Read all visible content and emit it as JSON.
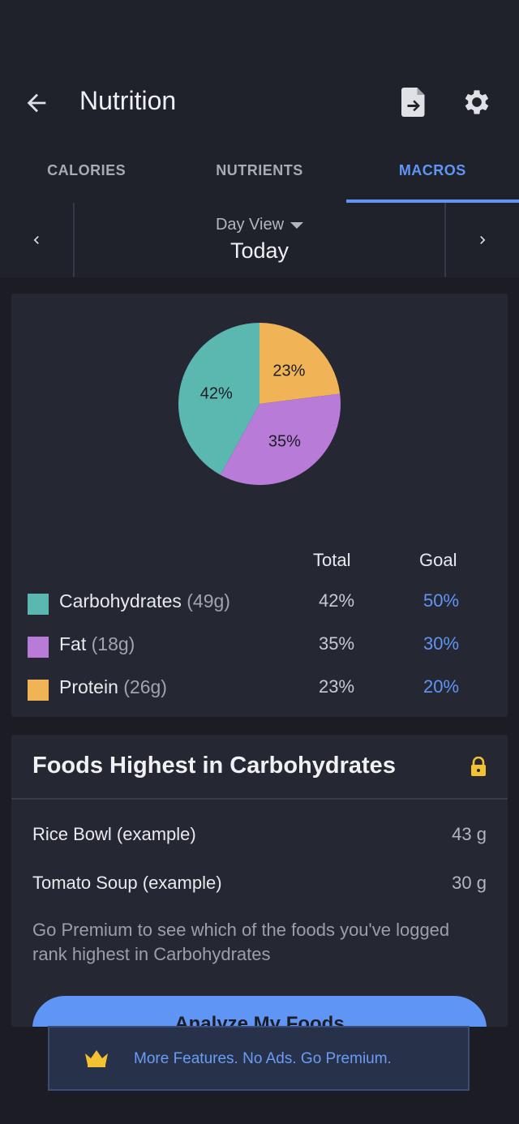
{
  "header": {
    "title": "Nutrition"
  },
  "tabs": [
    {
      "label": "CALORIES",
      "active": false
    },
    {
      "label": "NUTRIENTS",
      "active": false
    },
    {
      "label": "MACROS",
      "active": true
    }
  ],
  "date": {
    "view_label": "Day View",
    "value": "Today"
  },
  "chart_data": {
    "type": "pie",
    "slices": [
      {
        "name": "Protein",
        "value": 23,
        "label": "23%",
        "color": "#f0b456"
      },
      {
        "name": "Fat",
        "value": 35,
        "label": "35%",
        "color": "#b97bd8"
      },
      {
        "name": "Carbohydrates",
        "value": 42,
        "label": "42%",
        "color": "#5bb8b0"
      }
    ]
  },
  "macros": {
    "header_total": "Total",
    "header_goal": "Goal",
    "rows": [
      {
        "name": "Carbohydrates",
        "grams": "(49g)",
        "total": "42%",
        "goal": "50%",
        "color": "#5bb8b0"
      },
      {
        "name": "Fat",
        "grams": "(18g)",
        "total": "35%",
        "goal": "30%",
        "color": "#b97bd8"
      },
      {
        "name": "Protein",
        "grams": "(26g)",
        "total": "23%",
        "goal": "20%",
        "color": "#f0b456"
      }
    ]
  },
  "foods": {
    "title": "Foods Highest in Carbohydrates",
    "items": [
      {
        "name": "Rice Bowl (example)",
        "amount": "43 g"
      },
      {
        "name": "Tomato Soup (example)",
        "amount": "30 g"
      }
    ],
    "promo_text": "Go Premium to see which of the foods you've logged rank highest in Carbohydrates",
    "button_label": "Analyze My Foods"
  },
  "banner": {
    "text": "More Features. No Ads. Go Premium."
  },
  "colors": {
    "accent": "#5f95f4",
    "background": "#1c1d24",
    "card": "#252733"
  }
}
